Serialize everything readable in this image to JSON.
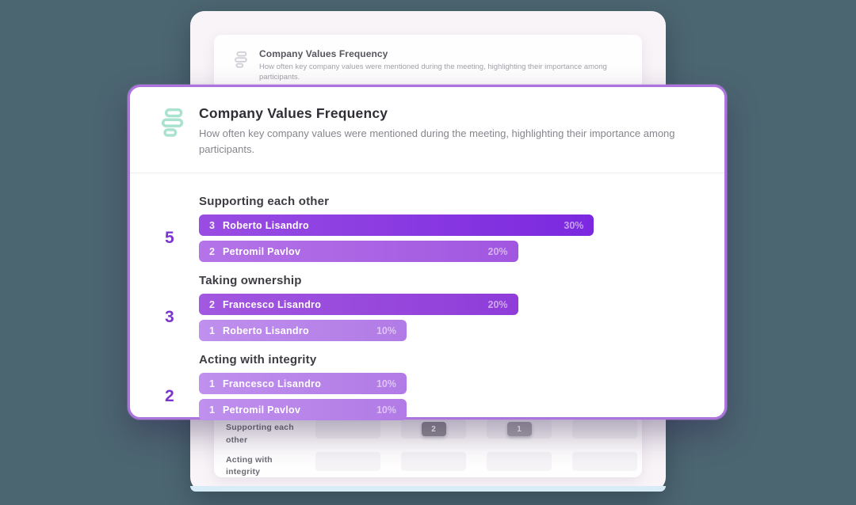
{
  "backdrop_color": "#4c6671",
  "background_page": {
    "header": {
      "title": "Company Values Frequency",
      "description": "How often key company values were mentioned during the meeting, highlighting their importance among participants.",
      "icon": "values-list-icon",
      "icon_color": "#d4d2d8"
    },
    "table": {
      "rows": [
        {
          "label": "Supporting each other",
          "badges": [
            {
              "value": "2",
              "color": "#908e94"
            },
            {
              "value": "1",
              "color": "#a7a5ab"
            }
          ]
        },
        {
          "label": "Acting with integrity",
          "badges": []
        }
      ]
    },
    "bottom_strip_color": "#d8ecf8"
  },
  "modal": {
    "icon": "values-list-icon",
    "icon_color": "#a9e2cf",
    "border_color": "#ae74dd",
    "accent_color": "#7c34cf",
    "title": "Company Values Frequency",
    "description": "How often key company values were mentioned during the meeting, highlighting their importance among participants.",
    "sections": [
      {
        "label": "Supporting each other",
        "total": "5",
        "bars": [
          {
            "count": "3",
            "name": "Roberto Lisandro",
            "pct": "30%",
            "width_pct": 78,
            "color_from": "#9a4de2",
            "color_to": "#7b28e0"
          },
          {
            "count": "2",
            "name": "Petromil Pavlov",
            "pct": "20%",
            "width_pct": 63,
            "color_from": "#b474e8",
            "color_to": "#a156e0"
          }
        ]
      },
      {
        "label": "Taking ownership",
        "total": "3",
        "bars": [
          {
            "count": "2",
            "name": "Francesco Lisandro",
            "pct": "20%",
            "width_pct": 63,
            "color_from": "#a258e0",
            "color_to": "#8f3cd9"
          },
          {
            "count": "1",
            "name": "Roberto Lisandro",
            "pct": "10%",
            "width_pct": 41,
            "color_from": "#bf90ed",
            "color_to": "#b27ae6"
          }
        ]
      },
      {
        "label": "Acting with integrity",
        "total": "2",
        "bars": [
          {
            "count": "1",
            "name": "Francesco Lisandro",
            "pct": "10%",
            "width_pct": 41,
            "color_from": "#bf90ed",
            "color_to": "#b27ae6"
          },
          {
            "count": "1",
            "name": "Petromil Pavlov",
            "pct": "10%",
            "width_pct": 41,
            "color_from": "#bf90ed",
            "color_to": "#b27ae6"
          }
        ]
      }
    ]
  },
  "chart_data": {
    "type": "bar",
    "title": "Company Values Frequency",
    "subtitle": "How often key company values were mentioned during the meeting, highlighting their importance among participants.",
    "orientation": "horizontal",
    "groups": [
      {
        "category": "Supporting each other",
        "total": 5,
        "bars": [
          {
            "participant": "Roberto Lisandro",
            "count": 3,
            "pct": 30
          },
          {
            "participant": "Petromil Pavlov",
            "count": 2,
            "pct": 20
          }
        ]
      },
      {
        "category": "Taking ownership",
        "total": 3,
        "bars": [
          {
            "participant": "Francesco Lisandro",
            "count": 2,
            "pct": 20
          },
          {
            "participant": "Roberto Lisandro",
            "count": 1,
            "pct": 10
          }
        ]
      },
      {
        "category": "Acting with integrity",
        "total": 2,
        "bars": [
          {
            "participant": "Francesco Lisandro",
            "count": 1,
            "pct": 10
          },
          {
            "participant": "Petromil Pavlov",
            "count": 1,
            "pct": 10
          }
        ]
      }
    ]
  }
}
